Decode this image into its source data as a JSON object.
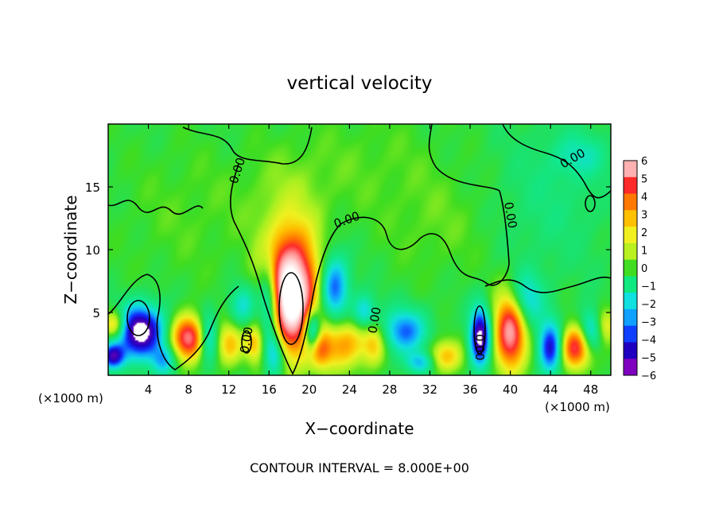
{
  "chart_data": {
    "type": "heatmap",
    "title": "vertical velocity",
    "xlabel": "X−coordinate",
    "ylabel": "Z−coordinate",
    "x_unit": "(×1000 m)",
    "xlim": [
      0,
      50
    ],
    "ylim": [
      0,
      20
    ],
    "x_ticks": [
      4,
      8,
      12,
      16,
      20,
      24,
      28,
      32,
      36,
      40,
      44,
      48
    ],
    "y_ticks": [
      5,
      10,
      15
    ],
    "footer": "CONTOUR INTERVAL = 8.000E+00",
    "contour_label": "0.00",
    "colorbar": {
      "ticks": [
        "6",
        "5",
        "4",
        "3",
        "2",
        "1",
        "0",
        "−1",
        "−2",
        "−3",
        "−4",
        "−5",
        "−6"
      ],
      "colors": [
        "#ffb0b0",
        "#ff2a2a",
        "#ff7800",
        "#ffc000",
        "#f0f020",
        "#b8f020",
        "#40dd20",
        "#10e880",
        "#10e0e0",
        "#10a0ff",
        "#1040ff",
        "#2000c0",
        "#8000c0"
      ]
    },
    "features": [
      {
        "x": 18.2,
        "z": 6.5,
        "w": 9.5,
        "sx": 1.8,
        "sz": 3.2
      },
      {
        "x": 8.0,
        "z": 3.0,
        "w": 6.0,
        "sx": 1.2,
        "sz": 1.2
      },
      {
        "x": 40.0,
        "z": 3.5,
        "w": 6.5,
        "sx": 1.1,
        "sz": 2.2
      },
      {
        "x": 46.5,
        "z": 2.2,
        "w": 5.5,
        "sx": 1.1,
        "sz": 1.2
      },
      {
        "x": 12.0,
        "z": 2.5,
        "w": 3.0,
        "sx": 1.0,
        "sz": 1.2
      },
      {
        "x": 0.7,
        "z": 4.0,
        "w": 4.0,
        "sx": 0.8,
        "sz": 0.8
      },
      {
        "x": 23.5,
        "z": 2.5,
        "w": 3.5,
        "sx": 1.6,
        "sz": 1.4
      },
      {
        "x": 26.5,
        "z": 2.5,
        "w": 2.5,
        "sx": 0.8,
        "sz": 1.2
      },
      {
        "x": 33.5,
        "z": 1.5,
        "w": 3.0,
        "sx": 1.2,
        "sz": 0.9
      },
      {
        "x": 14.5,
        "z": 2.5,
        "w": 2.5,
        "sx": 0.6,
        "sz": 1.0
      },
      {
        "x": 21.0,
        "z": 2.0,
        "w": 3.0,
        "sx": 0.8,
        "sz": 1.0
      },
      {
        "x": 49.5,
        "z": 4.0,
        "w": 2.5,
        "sx": 0.8,
        "sz": 1.0
      },
      {
        "x": 3.2,
        "z": 3.5,
        "w": -7.5,
        "sx": 1.6,
        "sz": 1.4
      },
      {
        "x": 0.5,
        "z": 1.5,
        "w": -6.0,
        "sx": 0.8,
        "sz": 0.7
      },
      {
        "x": 37.0,
        "z": 3.0,
        "w": -7.0,
        "sx": 0.7,
        "sz": 1.6
      },
      {
        "x": 16.0,
        "z": 6.0,
        "w": -5.0,
        "sx": 0.7,
        "sz": 2.0
      },
      {
        "x": 16.5,
        "z": 1.8,
        "w": -4.0,
        "sx": 0.7,
        "sz": 1.4
      },
      {
        "x": 20.3,
        "z": 3.5,
        "w": -5.5,
        "sx": 0.6,
        "sz": 1.2
      },
      {
        "x": 22.5,
        "z": 7.0,
        "w": -4.5,
        "sx": 1.0,
        "sz": 1.8
      },
      {
        "x": 29.5,
        "z": 3.5,
        "w": -4.0,
        "sx": 1.5,
        "sz": 1.2
      },
      {
        "x": 44.0,
        "z": 2.2,
        "w": -5.5,
        "sx": 0.8,
        "sz": 1.4
      },
      {
        "x": 41.5,
        "z": 6.0,
        "w": -3.0,
        "sx": 1.2,
        "sz": 1.5
      },
      {
        "x": 10.0,
        "z": 3.0,
        "w": -3.5,
        "sx": 0.7,
        "sz": 1.3
      },
      {
        "x": 5.5,
        "z": 1.2,
        "w": -3.0,
        "sx": 0.8,
        "sz": 0.8
      },
      {
        "x": 48.0,
        "z": 3.5,
        "w": -3.5,
        "sx": 0.8,
        "sz": 1.2
      },
      {
        "x": 31.0,
        "z": 1.0,
        "w": -3.0,
        "sx": 1.0,
        "sz": 0.6
      },
      {
        "x": 25.5,
        "z": 5.0,
        "w": -3.0,
        "sx": 0.8,
        "sz": 1.0
      },
      {
        "x": 13.5,
        "z": 5.5,
        "w": -2.5,
        "sx": 1.0,
        "sz": 1.2
      },
      {
        "x": 18.0,
        "z": 14.0,
        "w": 0.8,
        "sx": 3.0,
        "sz": 3.0
      },
      {
        "x": 33.0,
        "z": 12.0,
        "w": 0.6,
        "sx": 4.0,
        "sz": 3.0
      },
      {
        "x": 44.0,
        "z": 14.0,
        "w": -0.8,
        "sx": 4.0,
        "sz": 4.0
      },
      {
        "x": 8.0,
        "z": 13.0,
        "w": 0.5,
        "sx": 5.0,
        "sz": 4.0
      },
      {
        "x": 26.0,
        "z": 17.0,
        "w": 0.5,
        "sx": 5.0,
        "sz": 3.0
      },
      {
        "x": 47.0,
        "z": 17.5,
        "w": -1.5,
        "sx": 2.0,
        "sz": 1.2
      }
    ]
  }
}
